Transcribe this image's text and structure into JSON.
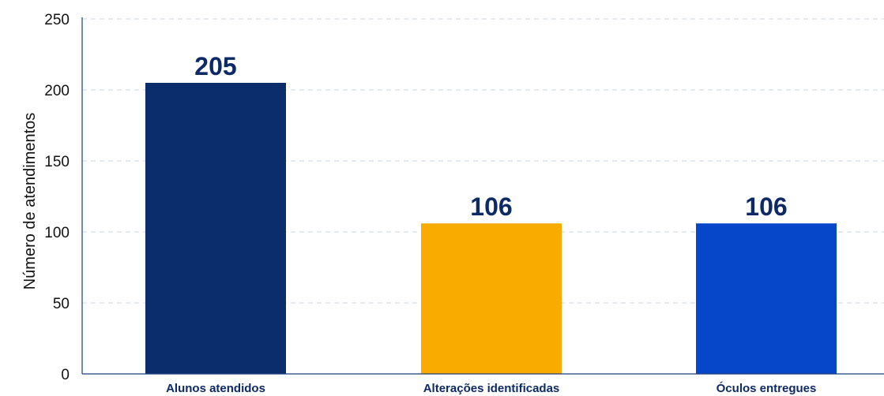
{
  "chart_data": {
    "type": "bar",
    "categories": [
      "Alunos atendidos",
      "Alterações identificadas",
      "Óculos entregues"
    ],
    "values": [
      205,
      106,
      106
    ],
    "value_labels": [
      "205",
      "106",
      "106"
    ],
    "colors": [
      "#0c2d6b",
      "#f9ab00",
      "#0646c8"
    ],
    "title": "",
    "xlabel": "",
    "ylabel": "Número de atendimentos",
    "ylim": [
      0,
      250
    ],
    "yticks": [
      0,
      50,
      100,
      150,
      200,
      250
    ],
    "grid": true,
    "gridline_color": "#c9d3e6",
    "label_color": "#0d2a66"
  }
}
